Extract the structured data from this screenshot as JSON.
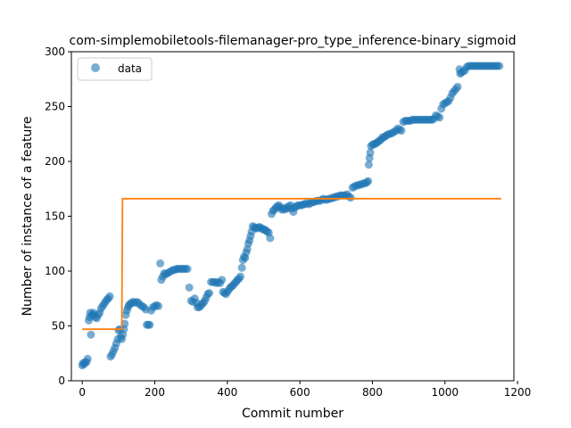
{
  "chart_data": {
    "type": "scatter",
    "title": "com-simplemobiletools-filemanager-pro_type_inference-binary_sigmoid",
    "xlabel": "Commit number",
    "ylabel": "Number of instance of a feature",
    "xlim": [
      -30,
      1190
    ],
    "ylim": [
      0,
      300
    ],
    "xticks": [
      0,
      200,
      400,
      600,
      800,
      1000,
      1200
    ],
    "yticks": [
      0,
      50,
      100,
      150,
      200,
      250,
      300
    ],
    "legend": {
      "placement": "top-left",
      "entries": [
        "data"
      ]
    },
    "colors": {
      "data": "#1f77b4",
      "fit": "#ff7f0e"
    },
    "series": [
      {
        "name": "data",
        "type": "scatter",
        "points": [
          [
            0,
            14
          ],
          [
            2,
            16
          ],
          [
            5,
            15
          ],
          [
            8,
            17
          ],
          [
            12,
            17
          ],
          [
            15,
            20
          ],
          [
            18,
            55
          ],
          [
            20,
            58
          ],
          [
            22,
            62
          ],
          [
            24,
            42
          ],
          [
            27,
            60
          ],
          [
            30,
            62
          ],
          [
            33,
            60
          ],
          [
            36,
            58
          ],
          [
            40,
            57
          ],
          [
            44,
            60
          ],
          [
            48,
            62
          ],
          [
            52,
            66
          ],
          [
            56,
            68
          ],
          [
            60,
            70
          ],
          [
            64,
            72
          ],
          [
            68,
            74
          ],
          [
            72,
            75
          ],
          [
            76,
            77
          ],
          [
            78,
            22
          ],
          [
            82,
            24
          ],
          [
            86,
            27
          ],
          [
            90,
            30
          ],
          [
            94,
            34
          ],
          [
            98,
            38
          ],
          [
            100,
            46
          ],
          [
            103,
            47
          ],
          [
            106,
            40
          ],
          [
            109,
            38
          ],
          [
            112,
            42
          ],
          [
            115,
            47
          ],
          [
            117,
            52
          ],
          [
            120,
            60
          ],
          [
            123,
            64
          ],
          [
            126,
            67
          ],
          [
            129,
            69
          ],
          [
            132,
            70
          ],
          [
            136,
            71
          ],
          [
            140,
            72
          ],
          [
            145,
            71
          ],
          [
            150,
            72
          ],
          [
            155,
            71
          ],
          [
            160,
            69
          ],
          [
            165,
            68
          ],
          [
            170,
            67
          ],
          [
            175,
            65
          ],
          [
            178,
            51
          ],
          [
            182,
            51
          ],
          [
            186,
            51
          ],
          [
            190,
            64
          ],
          [
            195,
            67
          ],
          [
            200,
            68
          ],
          [
            205,
            69
          ],
          [
            210,
            68
          ],
          [
            215,
            107
          ],
          [
            218,
            92
          ],
          [
            222,
            95
          ],
          [
            226,
            98
          ],
          [
            230,
            97
          ],
          [
            235,
            98
          ],
          [
            240,
            99
          ],
          [
            245,
            100
          ],
          [
            250,
            101
          ],
          [
            255,
            101
          ],
          [
            260,
            102
          ],
          [
            265,
            102
          ],
          [
            270,
            102
          ],
          [
            275,
            102
          ],
          [
            280,
            102
          ],
          [
            285,
            102
          ],
          [
            290,
            102
          ],
          [
            295,
            85
          ],
          [
            300,
            73
          ],
          [
            305,
            72
          ],
          [
            310,
            75
          ],
          [
            315,
            71
          ],
          [
            318,
            67
          ],
          [
            322,
            67
          ],
          [
            326,
            68
          ],
          [
            330,
            70
          ],
          [
            334,
            71
          ],
          [
            338,
            73
          ],
          [
            342,
            76
          ],
          [
            346,
            79
          ],
          [
            350,
            80
          ],
          [
            355,
            90
          ],
          [
            360,
            90
          ],
          [
            365,
            90
          ],
          [
            370,
            89
          ],
          [
            375,
            90
          ],
          [
            380,
            89
          ],
          [
            385,
            92
          ],
          [
            388,
            81
          ],
          [
            392,
            80
          ],
          [
            396,
            79
          ],
          [
            400,
            81
          ],
          [
            404,
            83
          ],
          [
            408,
            85
          ],
          [
            412,
            86
          ],
          [
            416,
            87
          ],
          [
            420,
            89
          ],
          [
            424,
            90
          ],
          [
            428,
            92
          ],
          [
            432,
            93
          ],
          [
            436,
            95
          ],
          [
            440,
            103
          ],
          [
            443,
            110
          ],
          [
            446,
            113
          ],
          [
            449,
            112
          ],
          [
            452,
            117
          ],
          [
            455,
            120
          ],
          [
            458,
            125
          ],
          [
            461,
            128
          ],
          [
            464,
            132
          ],
          [
            467,
            136
          ],
          [
            470,
            141
          ],
          [
            474,
            140
          ],
          [
            478,
            139
          ],
          [
            482,
            139
          ],
          [
            486,
            140
          ],
          [
            490,
            140
          ],
          [
            494,
            139
          ],
          [
            498,
            138
          ],
          [
            502,
            138
          ],
          [
            506,
            137
          ],
          [
            510,
            136
          ],
          [
            514,
            135
          ],
          [
            518,
            130
          ],
          [
            522,
            152
          ],
          [
            526,
            155
          ],
          [
            530,
            156
          ],
          [
            534,
            158
          ],
          [
            538,
            159
          ],
          [
            542,
            160
          ],
          [
            546,
            158
          ],
          [
            550,
            156
          ],
          [
            554,
            157
          ],
          [
            558,
            156
          ],
          [
            562,
            158
          ],
          [
            566,
            157
          ],
          [
            570,
            159
          ],
          [
            574,
            160
          ],
          [
            578,
            157
          ],
          [
            582,
            154
          ],
          [
            586,
            158
          ],
          [
            590,
            159
          ],
          [
            595,
            160
          ],
          [
            600,
            160
          ],
          [
            605,
            160
          ],
          [
            610,
            161
          ],
          [
            615,
            161
          ],
          [
            620,
            162
          ],
          [
            625,
            161
          ],
          [
            630,
            162
          ],
          [
            635,
            163
          ],
          [
            640,
            163
          ],
          [
            645,
            164
          ],
          [
            650,
            164
          ],
          [
            655,
            164
          ],
          [
            660,
            165
          ],
          [
            665,
            166
          ],
          [
            670,
            165
          ],
          [
            675,
            165
          ],
          [
            680,
            166
          ],
          [
            685,
            166
          ],
          [
            690,
            167
          ],
          [
            695,
            167
          ],
          [
            700,
            168
          ],
          [
            705,
            168
          ],
          [
            710,
            169
          ],
          [
            715,
            169
          ],
          [
            720,
            169
          ],
          [
            725,
            169
          ],
          [
            730,
            170
          ],
          [
            735,
            168
          ],
          [
            740,
            167
          ],
          [
            745,
            176
          ],
          [
            750,
            177
          ],
          [
            755,
            178
          ],
          [
            760,
            178
          ],
          [
            765,
            179
          ],
          [
            770,
            179
          ],
          [
            775,
            180
          ],
          [
            780,
            180
          ],
          [
            785,
            181
          ],
          [
            788,
            182
          ],
          [
            790,
            197
          ],
          [
            792,
            203
          ],
          [
            794,
            208
          ],
          [
            796,
            214
          ],
          [
            800,
            215
          ],
          [
            804,
            216
          ],
          [
            808,
            216
          ],
          [
            812,
            217
          ],
          [
            816,
            218
          ],
          [
            820,
            219
          ],
          [
            824,
            220
          ],
          [
            828,
            222
          ],
          [
            832,
            222
          ],
          [
            836,
            223
          ],
          [
            840,
            224
          ],
          [
            845,
            225
          ],
          [
            850,
            225
          ],
          [
            855,
            226
          ],
          [
            860,
            227
          ],
          [
            865,
            228
          ],
          [
            870,
            230
          ],
          [
            875,
            229
          ],
          [
            880,
            228
          ],
          [
            885,
            236
          ],
          [
            890,
            237
          ],
          [
            895,
            237
          ],
          [
            900,
            237
          ],
          [
            905,
            237
          ],
          [
            910,
            238
          ],
          [
            915,
            238
          ],
          [
            920,
            238
          ],
          [
            925,
            238
          ],
          [
            930,
            238
          ],
          [
            935,
            238
          ],
          [
            940,
            238
          ],
          [
            945,
            238
          ],
          [
            950,
            238
          ],
          [
            955,
            238
          ],
          [
            960,
            238
          ],
          [
            965,
            238
          ],
          [
            970,
            239
          ],
          [
            975,
            242
          ],
          [
            980,
            241
          ],
          [
            985,
            240
          ],
          [
            990,
            248
          ],
          [
            995,
            252
          ],
          [
            1000,
            253
          ],
          [
            1005,
            254
          ],
          [
            1010,
            255
          ],
          [
            1015,
            258
          ],
          [
            1020,
            262
          ],
          [
            1025,
            264
          ],
          [
            1030,
            266
          ],
          [
            1035,
            268
          ],
          [
            1040,
            284
          ],
          [
            1042,
            280
          ],
          [
            1045,
            281
          ],
          [
            1050,
            282
          ],
          [
            1055,
            283
          ],
          [
            1060,
            286
          ],
          [
            1065,
            287
          ],
          [
            1070,
            287
          ],
          [
            1075,
            287
          ],
          [
            1080,
            287
          ],
          [
            1085,
            287
          ],
          [
            1090,
            287
          ],
          [
            1095,
            287
          ],
          [
            1100,
            287
          ],
          [
            1105,
            287
          ],
          [
            1110,
            287
          ],
          [
            1115,
            287
          ],
          [
            1120,
            287
          ],
          [
            1125,
            287
          ],
          [
            1130,
            287
          ],
          [
            1135,
            287
          ],
          [
            1140,
            287
          ],
          [
            1145,
            287
          ],
          [
            1150,
            287
          ]
        ]
      },
      {
        "type": "line",
        "points": [
          [
            0,
            47
          ],
          [
            109,
            47
          ],
          [
            111,
            166
          ],
          [
            1155,
            166
          ]
        ]
      }
    ]
  }
}
